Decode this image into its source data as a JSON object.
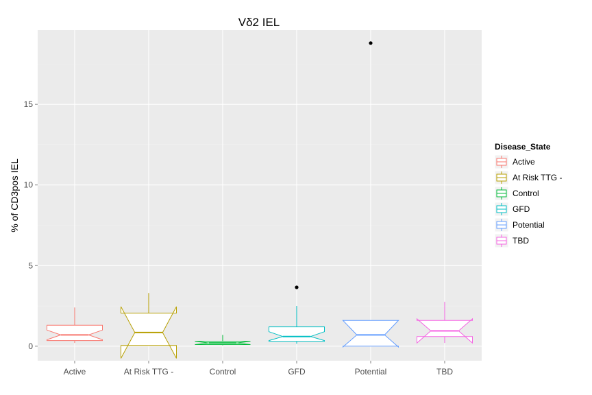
{
  "chart_data": {
    "type": "boxplot",
    "title": "Vδ2 IEL",
    "xlabel": "",
    "ylabel": "% of CD3pos IEL",
    "categories": [
      "Active",
      "At Risk TTG -",
      "Control",
      "GFD",
      "Potential",
      "TBD"
    ],
    "ylim": [
      -0.9,
      19.6
    ],
    "yticks": [
      0,
      5,
      10,
      15
    ],
    "notched": true,
    "grid": true,
    "legend": {
      "title": "Disease_State",
      "position": "right"
    },
    "colors": [
      "#F8766D",
      "#B79F00",
      "#00BA38",
      "#00BFC4",
      "#619CFF",
      "#F564E3"
    ],
    "series": [
      {
        "name": "Active",
        "min": 0.2,
        "q1": 0.35,
        "median": 0.7,
        "q3": 1.3,
        "max": 2.4,
        "notch_low": 0.4,
        "notch_high": 1.0,
        "outliers": []
      },
      {
        "name": "At Risk TTG -",
        "min": 0.05,
        "q1": 0.05,
        "median": 0.85,
        "q3": 2.05,
        "max": 3.3,
        "notch_low": -0.75,
        "notch_high": 2.45,
        "outliers": []
      },
      {
        "name": "Control",
        "min": 0.05,
        "q1": 0.1,
        "median": 0.2,
        "q3": 0.3,
        "max": 0.7,
        "notch_low": 0.1,
        "notch_high": 0.3,
        "outliers": []
      },
      {
        "name": "GFD",
        "min": 0.15,
        "q1": 0.3,
        "median": 0.6,
        "q3": 1.2,
        "max": 2.5,
        "notch_low": 0.35,
        "notch_high": 0.9,
        "outliers": [
          3.65
        ]
      },
      {
        "name": "Potential",
        "min": 0.0,
        "q1": 0.0,
        "median": 0.7,
        "q3": 1.6,
        "max": 1.6,
        "notch_low": -0.05,
        "notch_high": 1.6,
        "outliers": [
          18.8
        ]
      },
      {
        "name": "TBD",
        "min": 0.2,
        "q1": 0.6,
        "median": 0.95,
        "q3": 1.6,
        "max": 2.75,
        "notch_low": 0.2,
        "notch_high": 1.7,
        "outliers": []
      }
    ]
  }
}
